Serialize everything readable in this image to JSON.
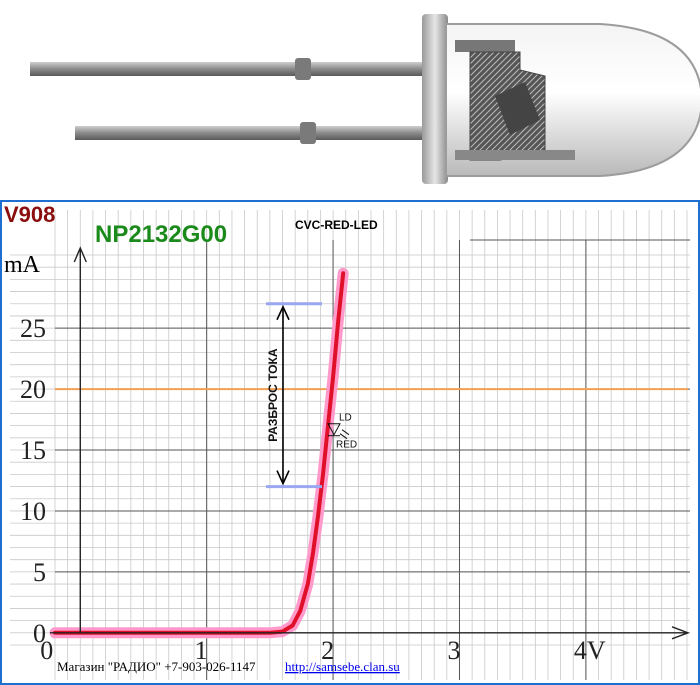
{
  "header": {
    "code": "V908",
    "part": "NP2132G00",
    "subtitle": "CVC-RED-LED"
  },
  "colors": {
    "code": "#8b0d0d",
    "part": "#1a8a1a",
    "curve": "#e0102a",
    "band": "#ff9acb",
    "ref_line": "#f0a050",
    "spread_marker": "#9aa6f0",
    "grid_minor": "#c9c9c9",
    "grid_major": "#555555",
    "frame": "#1e6fd0"
  },
  "photo": {
    "icon": "led-component-photo"
  },
  "chart_data": {
    "type": "line",
    "title": "CVC-RED-LED",
    "xlabel": "",
    "ylabel": "mA",
    "x_tick_labels": [
      "0",
      "1",
      "2",
      "3",
      "4V"
    ],
    "y_tick_labels": [
      "0",
      "5",
      "10",
      "15",
      "20",
      "25"
    ],
    "xlim": [
      -0.2,
      4.8
    ],
    "ylim": [
      -1,
      31
    ],
    "grid": true,
    "series": [
      {
        "x": [
          -0.2,
          0.5,
          1.0,
          1.35,
          1.5,
          1.6,
          1.68,
          1.74,
          1.8,
          1.84,
          1.88,
          1.92,
          1.96,
          2.0,
          2.04,
          2.08
        ],
        "y": [
          0,
          0,
          0,
          0,
          0,
          0.1,
          0.6,
          1.8,
          4.0,
          6.5,
          9.5,
          13.0,
          17.0,
          21.0,
          25.5,
          29.5
        ]
      }
    ],
    "reference_line": {
      "y": 20
    },
    "spread": {
      "label": "РАЗБРОС ТОКА",
      "y_low": 12,
      "y_high": 27
    },
    "symbol_labels": {
      "ld": "LD",
      "red": "RED"
    }
  },
  "footer": {
    "shop": "Магазин \"РАДИО\" +7-903-026-1147",
    "url": "http://samsebe.clan.su"
  }
}
